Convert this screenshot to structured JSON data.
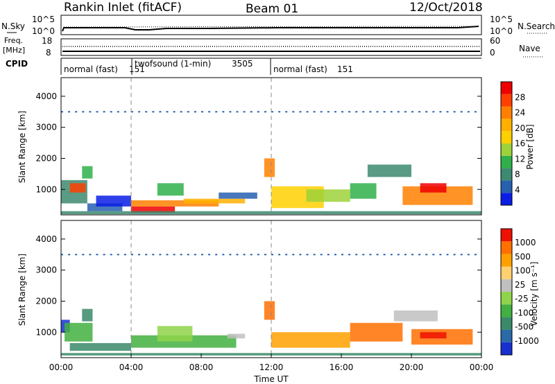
{
  "header": {
    "station": "Rankin Inlet (fitACF)",
    "beam": "Beam 01",
    "date": "12/Oct/2018"
  },
  "noise_panel": {
    "left_label": "N.Sky",
    "right_label": "N.Search",
    "left_ticks": [
      "10^5",
      "10^0"
    ],
    "right_ticks": [
      "10^5",
      "10^0"
    ]
  },
  "freq_panel": {
    "left_label_1": "Freq.",
    "left_label_2": "[MHz]",
    "right_label": "Nave",
    "left_ticks": [
      "18",
      "8"
    ],
    "right_ticks": [
      "60",
      "0"
    ]
  },
  "cpid_panel": {
    "label": "CPID",
    "segments": [
      {
        "name": "normal (fast)",
        "id": "151",
        "start_hour": 0,
        "end_hour": 4
      },
      {
        "name": "twofsound (1-min)",
        "id": "3505",
        "start_hour": 4,
        "end_hour": 12
      },
      {
        "name": "normal (fast)",
        "id": "151",
        "start_hour": 12,
        "end_hour": 24
      }
    ]
  },
  "x_axis": {
    "label": "Time UT",
    "ticks": [
      "00:00",
      "04:00",
      "08:00",
      "12:00",
      "16:00",
      "20:00",
      "00:00"
    ]
  },
  "power_panel": {
    "ylabel": "Slant Range [km]",
    "yticks": [
      "4000",
      "3000",
      "2000",
      "1000"
    ],
    "colorbar_label": "Power [dB]",
    "colorbar_ticks": [
      "28",
      "24",
      "20",
      "16",
      "12",
      "8",
      "4"
    ],
    "colors": [
      "#0a1ee6",
      "#2860b0",
      "#3d8a70",
      "#2fb04a",
      "#9ed23a",
      "#ffd000",
      "#ffb000",
      "#ff8000",
      "#ff4000",
      "#ee0000"
    ]
  },
  "velocity_panel": {
    "ylabel": "Slant Range [km]",
    "yticks": [
      "4000",
      "3000",
      "2000",
      "1000"
    ],
    "colorbar_label": "Velocity [m s⁻¹]",
    "colorbar_ticks": [
      "1000",
      "500",
      "100",
      "25",
      "-25",
      "-100",
      "-500",
      "-1000"
    ],
    "colors": [
      "#1830d0",
      "#2a6aa8",
      "#3a8a6a",
      "#42b040",
      "#8fd44a",
      "#c0c0c0",
      "#ffd070",
      "#ffa000",
      "#ff7000",
      "#ee1000"
    ]
  },
  "chart_data": {
    "type": "heatmap",
    "x_range_hours": [
      0,
      24
    ],
    "y_range_km": [
      180,
      4600
    ],
    "power_patches": [
      {
        "t0": 0.0,
        "t1": 1.5,
        "r0": 550,
        "r1": 1300,
        "color": "#3d8a70"
      },
      {
        "t0": 0.5,
        "t1": 1.4,
        "r0": 900,
        "r1": 1200,
        "color": "#ff4000"
      },
      {
        "t0": 1.2,
        "t1": 1.8,
        "r0": 1350,
        "r1": 1750,
        "color": "#2fb04a"
      },
      {
        "t0": 1.5,
        "t1": 3.5,
        "r0": 300,
        "r1": 550,
        "color": "#2860b0"
      },
      {
        "t0": 2.0,
        "t1": 4.0,
        "r0": 450,
        "r1": 800,
        "color": "#0a1ee6"
      },
      {
        "t0": 4.0,
        "t1": 6.5,
        "r0": 250,
        "r1": 450,
        "color": "#ee0000"
      },
      {
        "t0": 4.0,
        "t1": 9.0,
        "r0": 450,
        "r1": 650,
        "color": "#ff8000"
      },
      {
        "t0": 5.5,
        "t1": 7.0,
        "r0": 800,
        "r1": 1200,
        "color": "#2fb04a"
      },
      {
        "t0": 7.0,
        "t1": 10.5,
        "r0": 550,
        "r1": 700,
        "color": "#ffb000"
      },
      {
        "t0": 9.0,
        "t1": 11.2,
        "r0": 700,
        "r1": 900,
        "color": "#2860b0"
      },
      {
        "t0": 11.6,
        "t1": 12.2,
        "r0": 1400,
        "r1": 2000,
        "color": "#ff8000"
      },
      {
        "t0": 12.0,
        "t1": 15.0,
        "r0": 400,
        "r1": 1100,
        "color": "#ffd000"
      },
      {
        "t0": 14.0,
        "t1": 16.5,
        "r0": 600,
        "r1": 1000,
        "color": "#9ed23a"
      },
      {
        "t0": 16.5,
        "t1": 18.0,
        "r0": 700,
        "r1": 1200,
        "color": "#2fb04a"
      },
      {
        "t0": 17.5,
        "t1": 20.0,
        "r0": 1400,
        "r1": 1800,
        "color": "#3d8a70"
      },
      {
        "t0": 19.5,
        "t1": 23.5,
        "r0": 500,
        "r1": 1100,
        "color": "#ff8000"
      },
      {
        "t0": 20.5,
        "t1": 22.0,
        "r0": 900,
        "r1": 1200,
        "color": "#ee0000"
      },
      {
        "t0": 0.0,
        "t1": 24.0,
        "r0": 200,
        "r1": 300,
        "color": "#3d8a70"
      }
    ],
    "velocity_patches": [
      {
        "t0": 0.0,
        "t1": 0.5,
        "r0": 1000,
        "r1": 1400,
        "color": "#1830d0"
      },
      {
        "t0": 0.2,
        "t1": 1.8,
        "r0": 700,
        "r1": 1300,
        "color": "#42b040"
      },
      {
        "t0": 1.2,
        "t1": 1.8,
        "r0": 1350,
        "r1": 1750,
        "color": "#3a8a6a"
      },
      {
        "t0": 0.5,
        "t1": 4.0,
        "r0": 400,
        "r1": 650,
        "color": "#3a8a6a"
      },
      {
        "t0": 4.0,
        "t1": 10.0,
        "r0": 500,
        "r1": 900,
        "color": "#42b040"
      },
      {
        "t0": 5.5,
        "t1": 7.5,
        "r0": 700,
        "r1": 1200,
        "color": "#8fd44a"
      },
      {
        "t0": 9.5,
        "t1": 10.5,
        "r0": 800,
        "r1": 950,
        "color": "#c0c0c0"
      },
      {
        "t0": 11.6,
        "t1": 12.2,
        "r0": 1400,
        "r1": 2000,
        "color": "#ff7000"
      },
      {
        "t0": 12.0,
        "t1": 16.5,
        "r0": 500,
        "r1": 1000,
        "color": "#ffa000"
      },
      {
        "t0": 16.5,
        "t1": 19.5,
        "r0": 700,
        "r1": 1300,
        "color": "#ff7000"
      },
      {
        "t0": 19.0,
        "t1": 21.5,
        "r0": 1350,
        "r1": 1700,
        "color": "#c0c0c0"
      },
      {
        "t0": 20.0,
        "t1": 23.5,
        "r0": 600,
        "r1": 1100,
        "color": "#ff7000"
      },
      {
        "t0": 20.5,
        "t1": 22.0,
        "r0": 800,
        "r1": 1000,
        "color": "#ee1000"
      },
      {
        "t0": 0.0,
        "t1": 24.0,
        "r0": 250,
        "r1": 330,
        "color": "#3a8a6a"
      }
    ],
    "fov_band_km": 3500
  }
}
